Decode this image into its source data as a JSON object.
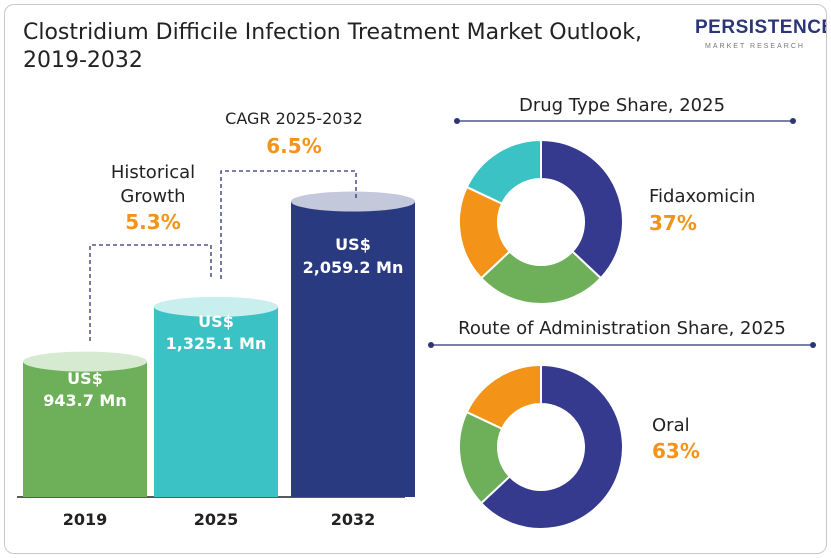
{
  "title": "Clostridium Difficile Infection Treatment Market Outlook, 2019-2032",
  "logo": {
    "brand": "PERSISTENCE",
    "tagline": "MARKET RESEARCH"
  },
  "colors": {
    "green": "#6eb05a",
    "teal": "#3bc2c4",
    "navy": "#293a80",
    "orange": "#f39317",
    "purple": "#353a8e",
    "accent": "#f39317"
  },
  "annotations": {
    "historical": {
      "label_line1": "Historical",
      "label_line2": "Growth",
      "value": "5.3%"
    },
    "cagr": {
      "label": "CAGR 2025-2032",
      "value": "6.5%"
    }
  },
  "chart_data": [
    {
      "type": "bar",
      "categories": [
        "2019",
        "2025",
        "2032"
      ],
      "values": [
        943.7,
        1325.1,
        2059.2
      ],
      "value_labels": [
        {
          "prefix": "US$",
          "amount": "943.7 Mn"
        },
        {
          "prefix": "US$",
          "amount": "1,325.1 Mn"
        },
        {
          "prefix": "US$",
          "amount": "2,059.2 Mn"
        }
      ],
      "colors": [
        "#6eb05a",
        "#3bc2c4",
        "#293a80"
      ]
    },
    {
      "type": "pie",
      "title": "Drug Type Share, 2025",
      "highlight_label": "Fidaxomicin",
      "highlight_value": "37%",
      "values": [
        37,
        26,
        19,
        18
      ],
      "colors": [
        "#353a8e",
        "#6eb05a",
        "#f39317",
        "#3bc2c4"
      ]
    },
    {
      "type": "pie",
      "title": "Route of Administration Share, 2025",
      "highlight_label": "Oral",
      "highlight_value": "63%",
      "values": [
        63,
        19,
        18
      ],
      "colors": [
        "#353a8e",
        "#6eb05a",
        "#f39317"
      ]
    }
  ]
}
